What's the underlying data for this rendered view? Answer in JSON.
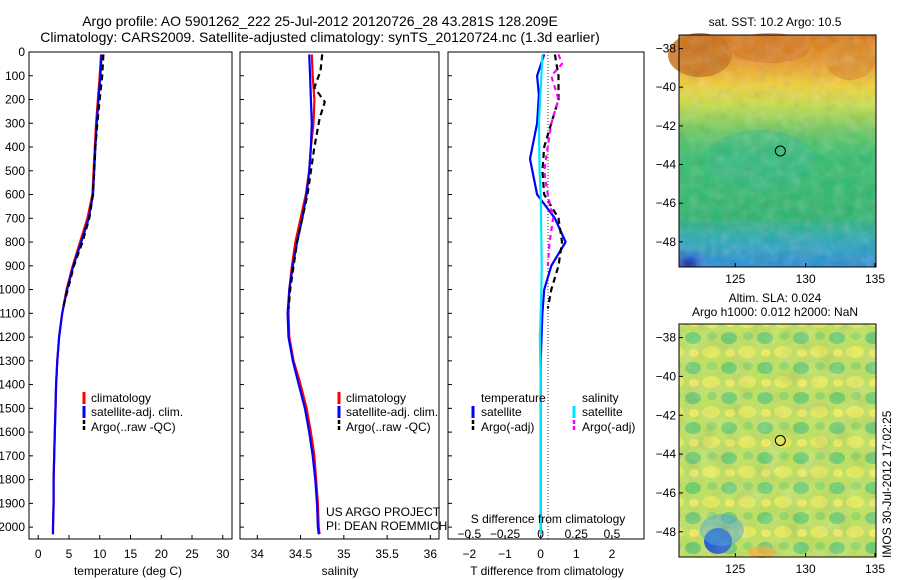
{
  "header": {
    "line1": "Argo profile: AO 5901262_222 25-Jul-2012 20120726_28 43.281S 128.209E",
    "line2": "Climatology: CARS2009. Satellite-adjusted climatology: synTS_20120724.nc (1.3d earlier)"
  },
  "credits": {
    "project": "US ARGO PROJECT",
    "pi": "PI: DEAN ROEMMICH",
    "stamp": "IMOS 30-Jul-2012 17:02:25"
  },
  "colors": {
    "climatology": "#ff0000",
    "satellite": "#0000ff",
    "argo": "#000000",
    "salinity_satellite": "#00e5ff",
    "salinity_argo": "#ff00ff"
  },
  "chart_data": [
    {
      "id": "temperature",
      "type": "line",
      "xlabel": "temperature (deg C)",
      "ylabel": "",
      "xlim": [
        -1.5,
        31.5
      ],
      "ylim": [
        2050,
        0
      ],
      "xticks": [
        0,
        5,
        10,
        15,
        20,
        25,
        30
      ],
      "yticks": [
        0,
        100,
        200,
        300,
        400,
        500,
        600,
        700,
        800,
        900,
        1000,
        1100,
        1200,
        1300,
        1400,
        1500,
        1600,
        1700,
        1800,
        1900,
        2000
      ],
      "legend_position": "lower-center",
      "legend": [
        "climatology",
        "satellite-adj. clim.",
        "Argo(..raw -QC)"
      ],
      "series": [
        {
          "name": "climatology",
          "color": "#ff0000",
          "dash": "",
          "points": [
            [
              10.2,
              10
            ],
            [
              10.0,
              100
            ],
            [
              9.7,
              200
            ],
            [
              9.4,
              300
            ],
            [
              9.2,
              400
            ],
            [
              9.0,
              500
            ],
            [
              8.8,
              600
            ],
            [
              8.0,
              700
            ],
            [
              6.8,
              800
            ],
            [
              5.6,
              900
            ],
            [
              4.6,
              1000
            ],
            [
              3.9,
              1100
            ],
            [
              3.4,
              1200
            ],
            [
              3.1,
              1300
            ],
            [
              2.9,
              1400
            ],
            [
              2.8,
              1500
            ],
            [
              2.7,
              1600
            ],
            [
              2.6,
              1700
            ],
            [
              2.5,
              1800
            ],
            [
              2.5,
              1900
            ],
            [
              2.4,
              2000
            ],
            [
              2.4,
              2030
            ]
          ]
        },
        {
          "name": "satellite-adj. clim.",
          "color": "#0000ff",
          "dash": "",
          "points": [
            [
              10.3,
              10
            ],
            [
              10.1,
              100
            ],
            [
              9.8,
              200
            ],
            [
              9.5,
              300
            ],
            [
              9.3,
              400
            ],
            [
              9.1,
              500
            ],
            [
              8.9,
              600
            ],
            [
              8.2,
              700
            ],
            [
              7.0,
              800
            ],
            [
              5.7,
              900
            ],
            [
              4.7,
              1000
            ],
            [
              3.9,
              1100
            ],
            [
              3.4,
              1200
            ],
            [
              3.1,
              1300
            ],
            [
              2.9,
              1400
            ],
            [
              2.8,
              1500
            ],
            [
              2.7,
              1600
            ],
            [
              2.6,
              1700
            ],
            [
              2.5,
              1800
            ],
            [
              2.5,
              1900
            ],
            [
              2.4,
              2000
            ],
            [
              2.4,
              2030
            ]
          ]
        },
        {
          "name": "Argo(..raw -QC)",
          "color": "#000000",
          "dash": "6,4",
          "points": [
            [
              10.6,
              10
            ],
            [
              10.4,
              100
            ],
            [
              10.0,
              200
            ],
            [
              9.6,
              300
            ],
            [
              9.3,
              400
            ],
            [
              9.1,
              500
            ],
            [
              8.9,
              600
            ],
            [
              8.3,
              700
            ],
            [
              7.2,
              800
            ],
            [
              5.8,
              900
            ],
            [
              4.8,
              1000
            ],
            [
              4.0,
              1080
            ]
          ]
        }
      ]
    },
    {
      "id": "salinity",
      "type": "line",
      "xlabel": "salinity",
      "ylabel": "",
      "xlim": [
        33.8,
        36.1
      ],
      "ylim": [
        2050,
        0
      ],
      "xticks": [
        34,
        34.5,
        35,
        35.5,
        36
      ],
      "legend_position": "lower-right",
      "legend": [
        "climatology",
        "satellite-adj. clim.",
        "Argo(..raw -QC)"
      ],
      "series": [
        {
          "name": "climatology",
          "color": "#ff0000",
          "dash": "",
          "points": [
            [
              34.63,
              10
            ],
            [
              34.64,
              100
            ],
            [
              34.66,
              200
            ],
            [
              34.65,
              300
            ],
            [
              34.62,
              400
            ],
            [
              34.6,
              500
            ],
            [
              34.56,
              600
            ],
            [
              34.5,
              700
            ],
            [
              34.44,
              800
            ],
            [
              34.4,
              900
            ],
            [
              34.37,
              1000
            ],
            [
              34.36,
              1100
            ],
            [
              34.37,
              1200
            ],
            [
              34.42,
              1300
            ],
            [
              34.5,
              1400
            ],
            [
              34.57,
              1500
            ],
            [
              34.62,
              1600
            ],
            [
              34.66,
              1700
            ],
            [
              34.68,
              1800
            ],
            [
              34.7,
              1900
            ],
            [
              34.71,
              2000
            ],
            [
              34.72,
              2030
            ]
          ]
        },
        {
          "name": "satellite-adj. clim.",
          "color": "#0000ff",
          "dash": "",
          "points": [
            [
              34.6,
              10
            ],
            [
              34.61,
              100
            ],
            [
              34.62,
              200
            ],
            [
              34.63,
              300
            ],
            [
              34.62,
              400
            ],
            [
              34.6,
              500
            ],
            [
              34.57,
              600
            ],
            [
              34.52,
              700
            ],
            [
              34.46,
              800
            ],
            [
              34.41,
              900
            ],
            [
              34.37,
              1000
            ],
            [
              34.35,
              1100
            ],
            [
              34.36,
              1200
            ],
            [
              34.41,
              1300
            ],
            [
              34.48,
              1400
            ],
            [
              34.55,
              1500
            ],
            [
              34.6,
              1600
            ],
            [
              34.64,
              1700
            ],
            [
              34.67,
              1800
            ],
            [
              34.69,
              1900
            ],
            [
              34.7,
              2000
            ],
            [
              34.71,
              2030
            ]
          ]
        },
        {
          "name": "Argo(..raw -QC)",
          "color": "#000000",
          "dash": "6,4",
          "points": [
            [
              34.75,
              10
            ],
            [
              34.73,
              80
            ],
            [
              34.66,
              150
            ],
            [
              34.78,
              210
            ],
            [
              34.72,
              280
            ],
            [
              34.66,
              400
            ],
            [
              34.62,
              500
            ],
            [
              34.58,
              600
            ],
            [
              34.52,
              700
            ],
            [
              34.46,
              800
            ],
            [
              34.42,
              900
            ],
            [
              34.38,
              1000
            ],
            [
              34.36,
              1080
            ]
          ]
        }
      ]
    },
    {
      "id": "difference",
      "type": "line",
      "xlabel": "T difference from climatology",
      "ylabel": "",
      "xlim": [
        -2.6,
        2.9
      ],
      "ylim": [
        2050,
        0
      ],
      "xticks": [
        -2,
        -1,
        0,
        1,
        2
      ],
      "secondary_xlabel": "S difference from climatology",
      "secondary_xticks": [
        "-0.5",
        "-0.25",
        "0",
        "0.25",
        "0.5"
      ],
      "legend_position": "lower",
      "legend": {
        "temperature_heading": "temperature",
        "salinity_heading": "salinity",
        "temperature": [
          "satellite",
          "Argo(-adj)"
        ],
        "salinity": [
          "satellite",
          "Argo(-adj)"
        ]
      },
      "series": [
        {
          "name": "temperature satellite",
          "color": "#0000ff",
          "dash": "",
          "points": [
            [
              0.1,
              10
            ],
            [
              -0.1,
              100
            ],
            [
              -0.05,
              180
            ],
            [
              -0.1,
              300
            ],
            [
              -0.3,
              450
            ],
            [
              -0.1,
              600
            ],
            [
              0.4,
              700
            ],
            [
              0.7,
              800
            ],
            [
              0.3,
              900
            ],
            [
              0.1,
              1000
            ],
            [
              0.05,
              1100
            ],
            [
              0,
              1300
            ],
            [
              0,
              1600
            ],
            [
              0,
              2030
            ]
          ]
        },
        {
          "name": "temperature Argo(-adj)",
          "color": "#000000",
          "dash": "6,4",
          "points": [
            [
              0.4,
              10
            ],
            [
              0.5,
              100
            ],
            [
              0.5,
              200
            ],
            [
              0.3,
              300
            ],
            [
              0.1,
              400
            ],
            [
              0.05,
              500
            ],
            [
              0.1,
              600
            ],
            [
              0.5,
              700
            ],
            [
              0.6,
              800
            ],
            [
              0.5,
              900
            ],
            [
              0.3,
              1000
            ],
            [
              0.2,
              1080
            ]
          ]
        },
        {
          "name": "salinity satellite",
          "color": "#00e5ff",
          "dash": "",
          "points": [
            [
              0.05,
              10
            ],
            [
              0.02,
              100
            ],
            [
              -0.05,
              300
            ],
            [
              -0.03,
              500
            ],
            [
              0,
              600
            ],
            [
              0.02,
              800
            ],
            [
              0.03,
              900
            ],
            [
              0.02,
              1000
            ],
            [
              0,
              1100
            ],
            [
              -0.02,
              1200
            ],
            [
              0,
              1400
            ],
            [
              0,
              2030
            ]
          ]
        },
        {
          "name": "salinity Argo(-adj)",
          "color": "#ff00ff",
          "dash": "5,4",
          "points": [
            [
              0.5,
              10
            ],
            [
              0.6,
              50
            ],
            [
              0.3,
              100
            ],
            [
              0.5,
              200
            ],
            [
              0.3,
              300
            ],
            [
              0.2,
              400
            ],
            [
              0.1,
              500
            ],
            [
              0.2,
              600
            ],
            [
              0.35,
              700
            ],
            [
              0.25,
              800
            ],
            [
              0.2,
              900
            ]
          ]
        }
      ]
    },
    {
      "id": "sst_map",
      "type": "heatmap",
      "title": "sat. SST: 10.2 Argo: 10.5",
      "xlim": [
        121,
        135
      ],
      "ylim": [
        -49.3,
        -37.3
      ],
      "xticks": [
        125,
        130,
        135
      ],
      "yticks": [
        -38,
        -40,
        -42,
        -44,
        -46,
        -48
      ],
      "marker": [
        128.2,
        -43.3
      ]
    },
    {
      "id": "sla_map",
      "type": "heatmap",
      "title1": "Altim. SLA: 0.024",
      "title2": "Argo h1000: 0.012 h2000: NaN",
      "xlim": [
        121,
        135
      ],
      "ylim": [
        -49.3,
        -37.3
      ],
      "xticks": [
        125,
        130,
        135
      ],
      "yticks": [
        -38,
        -40,
        -42,
        -44,
        -46,
        -48
      ],
      "marker": [
        128.2,
        -43.3
      ]
    }
  ]
}
